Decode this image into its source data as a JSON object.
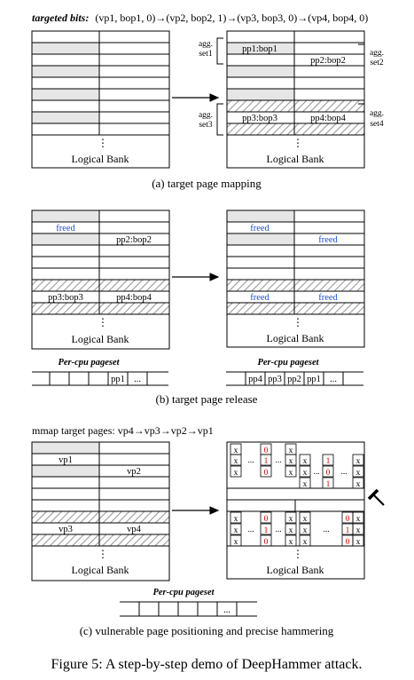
{
  "a": {
    "header_prefix": "targeted bits:",
    "header_seq": "(vp1, bop1, 0)→(vp2, bop2, 1)→(vp3, bop3, 0)→(vp4, bop4, 0)",
    "bank_label": "Logical Bank",
    "pp1": "pp1:bop1",
    "pp2": "pp2:bop2",
    "pp3": "pp3:bop3",
    "pp4": "pp4:bop4",
    "agg1_l1": "agg.",
    "agg1_l2": "set1",
    "agg2_l1": "agg.",
    "agg2_l2": "set2",
    "agg3_l1": "agg.",
    "agg3_l2": "set3",
    "agg4_l1": "agg.",
    "agg4_l2": "set4",
    "caption": "(a) target page mapping"
  },
  "b": {
    "bank_label": "Logical Bank",
    "freed": "freed",
    "pp2": "pp2:bop2",
    "pp3": "pp3:bop3",
    "pp4": "pp4:bop4",
    "pageset_title": "Per-cpu pageset",
    "left_pageset": [
      "",
      "",
      "",
      "",
      "pp1",
      "..."
    ],
    "right_pageset": [
      "pp4",
      "pp3",
      "pp2",
      "pp1",
      "..."
    ],
    "caption": "(b) target page release"
  },
  "c": {
    "header": "mmap target pages: vp4→vp3→vp2→vp1",
    "vp1": "vp1",
    "vp2": "vp2",
    "vp3": "vp3",
    "vp4": "vp4",
    "bank_label": "Logical Bank",
    "pageset_title": "Per-cpu pageset",
    "pageset": [
      "",
      "",
      "",
      "",
      "",
      "...",
      ""
    ],
    "cell_x": "x",
    "ellipsis": "...",
    "zero": "0",
    "one": "1",
    "caption": "(c) vulnerable page positioning and precise hammering"
  },
  "figure_caption": "Figure 5: A step-by-step demo of DeepHammer attack.",
  "colors": {
    "grey_row": "#e6e6e6",
    "hatch": "#9a9a9a",
    "freed_text": "#1e4fd0",
    "bit_text": "#d40000"
  }
}
